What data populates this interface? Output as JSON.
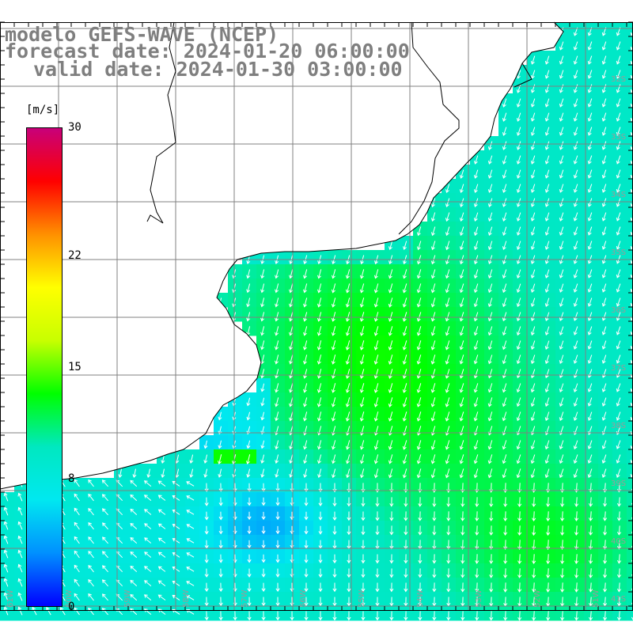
{
  "title": {
    "line1": "modelo GEFS-WAVE (NCEP)",
    "line2": "forecast date: 2024-01-20 06:00:00",
    "line3": "valid date: 2024-01-30 03:00:00"
  },
  "colorbar": {
    "unit": "[m/s]",
    "min": 0,
    "max": 30,
    "ticks": [
      {
        "value": 30,
        "label": "30"
      },
      {
        "value": 22,
        "label": "22"
      },
      {
        "value": 15,
        "label": "15"
      },
      {
        "value": 8,
        "label": "8"
      },
      {
        "value": 0,
        "label": "0"
      }
    ],
    "colors": [
      "#0000ff",
      "#0090ff",
      "#00e8f0",
      "#00e8c0",
      "#00ff00",
      "#c8ff00",
      "#ffff00",
      "#ff9000",
      "#ff0000",
      "#c8007a"
    ]
  },
  "map": {
    "lat_labels": [
      "32S",
      "33S",
      "34S",
      "35S",
      "36S",
      "37S",
      "38S",
      "39S",
      "40S",
      "41S"
    ],
    "lon_labels": [
      "61W",
      "60W",
      "59W",
      "58W",
      "57W",
      "56W",
      "55W",
      "54W",
      "53W",
      "52W",
      "51W"
    ],
    "land_color": "#ffffff",
    "grid_color": "#808080",
    "coast_color": "#000000",
    "arrow_color": "#ffffff"
  }
}
